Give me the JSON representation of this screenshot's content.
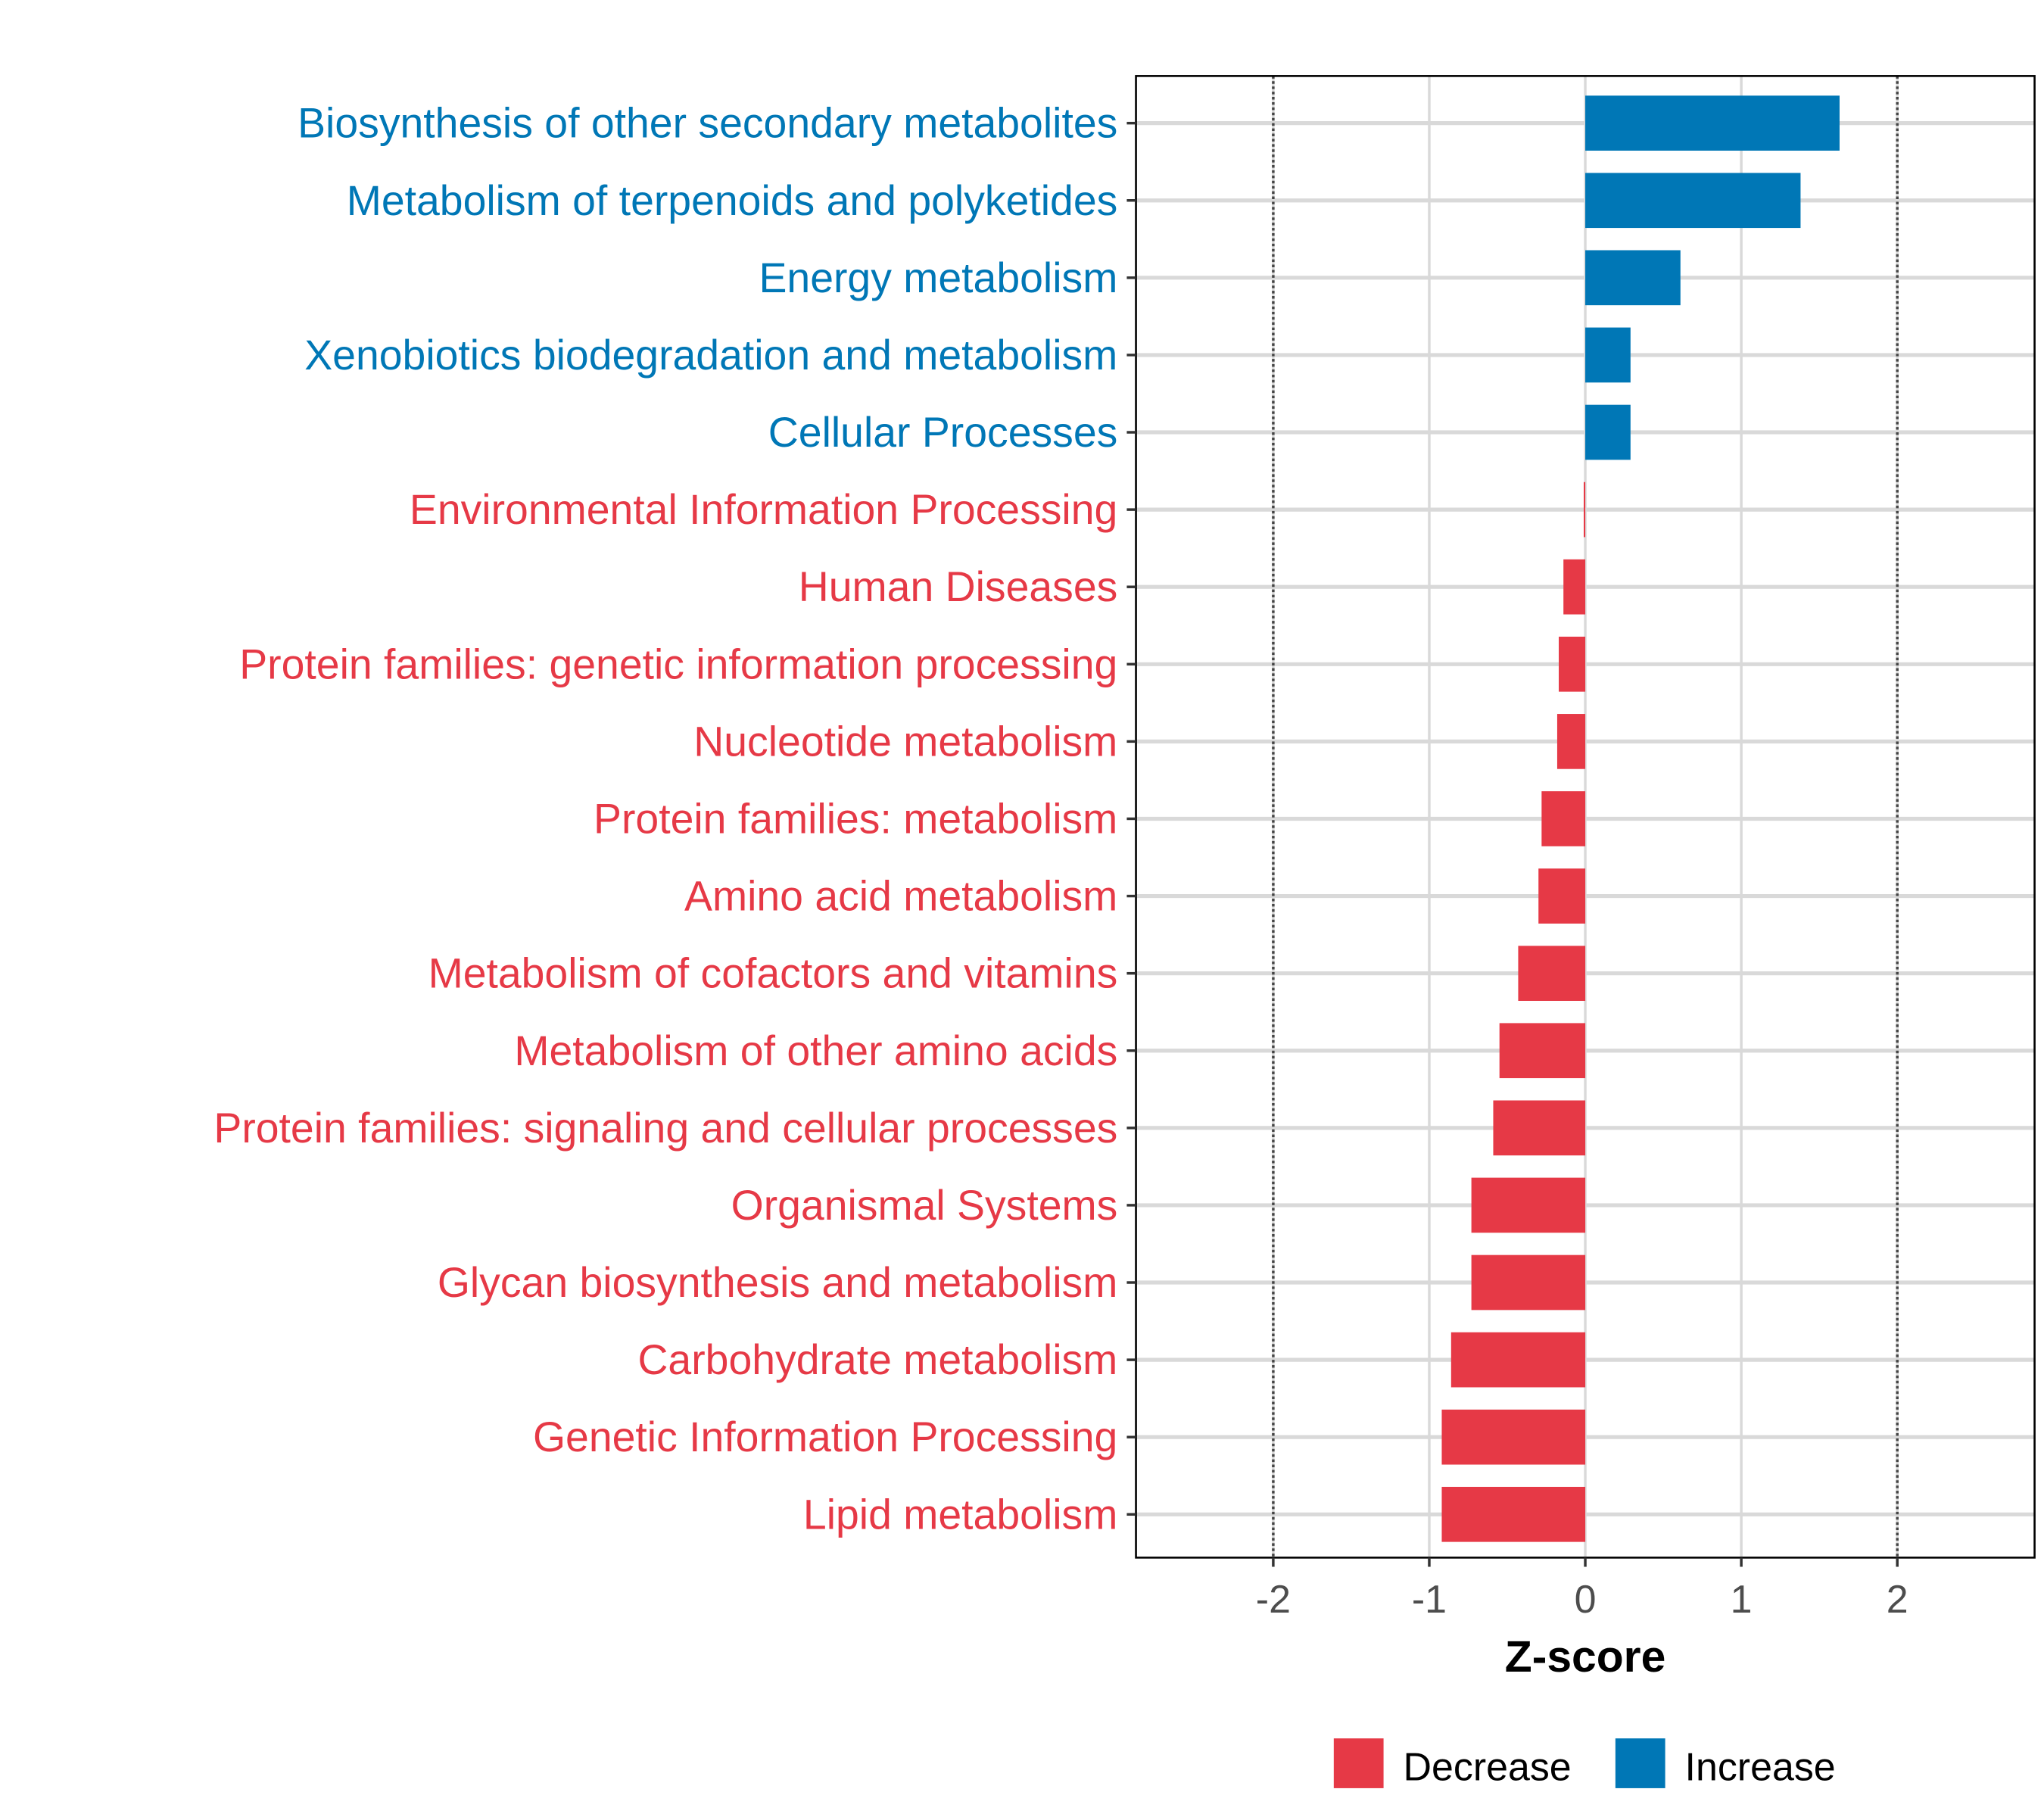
{
  "chart_data": {
    "type": "bar",
    "orientation": "horizontal",
    "title": "",
    "xlabel": "Z-score",
    "ylabel": "",
    "xlim": [
      -2.88,
      2.88
    ],
    "xticks": [
      -2,
      -1,
      0,
      1,
      2
    ],
    "xtick_labels": [
      "-2",
      "-1",
      "0",
      "1",
      "2"
    ],
    "reference_lines": [
      -2,
      2
    ],
    "grid": true,
    "legend_position": "bottom",
    "legend": [
      {
        "label": "Decrease",
        "color": "#E63946"
      },
      {
        "label": "Increase",
        "color": "#0077B6"
      }
    ],
    "categories": [
      "Biosynthesis of other secondary metabolites",
      "Metabolism of terpenoids and polyketides",
      "Energy metabolism",
      "Xenobiotics biodegradation and metabolism",
      "Cellular Processes",
      "Environmental Information Processing",
      "Human Diseases",
      "Protein families: genetic information processing",
      "Nucleotide metabolism",
      "Protein families: metabolism",
      "Amino acid metabolism",
      "Metabolism of cofactors and vitamins",
      "Metabolism of other amino acids",
      "Protein families: signaling and cellular processes",
      "Organismal Systems",
      "Glycan biosynthesis and metabolism",
      "Carbohydrate metabolism",
      "Genetic Information Processing",
      "Lipid metabolism"
    ],
    "values": [
      1.63,
      1.38,
      0.61,
      0.29,
      0.29,
      -0.005,
      -0.14,
      -0.17,
      -0.18,
      -0.28,
      -0.3,
      -0.43,
      -0.55,
      -0.59,
      -0.73,
      -0.73,
      -0.86,
      -0.92,
      -0.92
    ],
    "groups": [
      "Increase",
      "Increase",
      "Increase",
      "Increase",
      "Increase",
      "Decrease",
      "Decrease",
      "Decrease",
      "Decrease",
      "Decrease",
      "Decrease",
      "Decrease",
      "Decrease",
      "Decrease",
      "Decrease",
      "Decrease",
      "Decrease",
      "Decrease",
      "Decrease"
    ]
  }
}
